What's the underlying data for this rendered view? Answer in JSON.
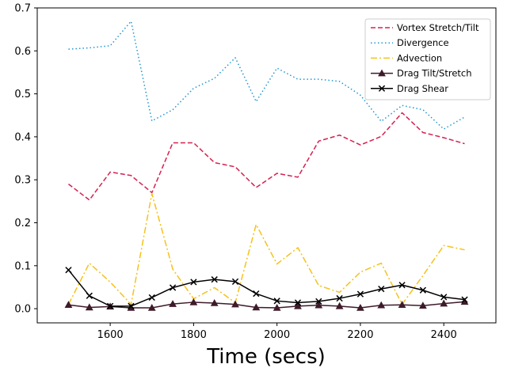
{
  "chart_data": {
    "type": "line",
    "title": "",
    "xlabel": "Time (secs)",
    "ylabel": "",
    "xlim": [
      1425,
      2525
    ],
    "ylim": [
      -0.033,
      0.7
    ],
    "grid": false,
    "legend_position": "top-right",
    "x_ticks": [
      {
        "value": 1600,
        "label": "1600"
      },
      {
        "value": 1800,
        "label": "1800"
      },
      {
        "value": 2000,
        "label": "2000"
      },
      {
        "value": 2200,
        "label": "2200"
      },
      {
        "value": 2400,
        "label": "2400"
      }
    ],
    "y_ticks": [
      {
        "value": 0.0,
        "label": "0.0"
      },
      {
        "value": 0.1,
        "label": "0.1"
      },
      {
        "value": 0.2,
        "label": "0.2"
      },
      {
        "value": 0.3,
        "label": "0.3"
      },
      {
        "value": 0.4,
        "label": "0.4"
      },
      {
        "value": 0.5,
        "label": "0.5"
      },
      {
        "value": 0.6,
        "label": "0.6"
      },
      {
        "value": 0.7,
        "label": "0.7"
      }
    ],
    "x": [
      1500,
      1550,
      1600,
      1650,
      1700,
      1750,
      1800,
      1850,
      1900,
      1950,
      2000,
      2050,
      2100,
      2150,
      2200,
      2250,
      2300,
      2350,
      2400,
      2450
    ],
    "series": [
      {
        "name": "Vortex Stretch/Tilt",
        "color": "#d62050",
        "dash": "dashed",
        "marker": "none",
        "values": [
          0.29,
          0.253,
          0.318,
          0.31,
          0.27,
          0.386,
          0.386,
          0.34,
          0.33,
          0.282,
          0.315,
          0.306,
          0.39,
          0.404,
          0.381,
          0.401,
          0.456,
          0.41,
          0.398,
          0.384
        ]
      },
      {
        "name": "Divergence",
        "color": "#1f96d2",
        "dash": "dotted",
        "marker": "none",
        "values": [
          0.604,
          0.607,
          0.612,
          0.669,
          0.437,
          0.463,
          0.513,
          0.536,
          0.584,
          0.482,
          0.56,
          0.534,
          0.534,
          0.529,
          0.497,
          0.436,
          0.473,
          0.463,
          0.418,
          0.446
        ]
      },
      {
        "name": "Advection",
        "color": "#f5c21b",
        "dash": "dashdot",
        "marker": "none",
        "values": [
          0.01,
          0.106,
          0.062,
          0.01,
          0.268,
          0.092,
          0.023,
          0.049,
          0.014,
          0.196,
          0.104,
          0.142,
          0.054,
          0.038,
          0.085,
          0.106,
          0.01,
          0.077,
          0.147,
          0.137
        ]
      },
      {
        "name": "Drag Tilt/Stretch",
        "color": "#3e1a2a",
        "dash": "solid",
        "marker": "triangle",
        "values": [
          0.009,
          0.003,
          0.005,
          0.002,
          0.002,
          0.011,
          0.015,
          0.013,
          0.01,
          0.003,
          0.002,
          0.006,
          0.008,
          0.006,
          0.002,
          0.008,
          0.009,
          0.007,
          0.012,
          0.016
        ]
      },
      {
        "name": "Drag Shear",
        "color": "#000000",
        "dash": "solid",
        "marker": "x",
        "values": [
          0.09,
          0.03,
          0.006,
          0.006,
          0.026,
          0.049,
          0.062,
          0.068,
          0.063,
          0.035,
          0.018,
          0.014,
          0.017,
          0.024,
          0.034,
          0.046,
          0.055,
          0.043,
          0.027,
          0.021
        ]
      }
    ]
  }
}
